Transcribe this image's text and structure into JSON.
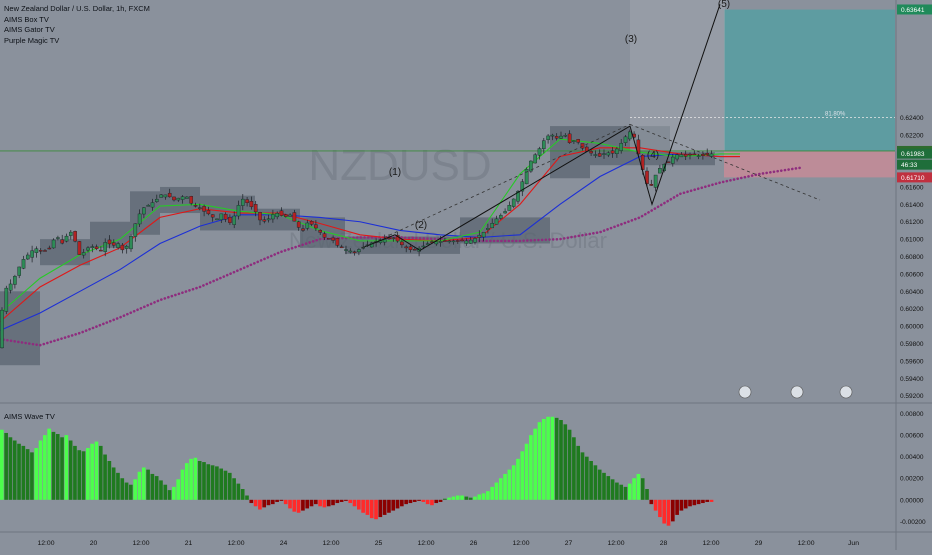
{
  "legend": {
    "title": "New Zealand Dollar / U.S. Dollar, 1h, FXCM",
    "ind1": "AIMS Box TV",
    "ind2": "AIMS Gator TV",
    "ind3": "Purple Magic TV"
  },
  "sub_legend": "AIMS Wave TV",
  "watermark": {
    "symbol": "NZDUSD",
    "name": "New Zealand Dollar / U.S. Dollar"
  },
  "colors": {
    "background": "#8a919c",
    "up": "#2e8b57",
    "down": "#b22222",
    "wave_green_bright": "#4cff4c",
    "wave_green_dark": "#1f7a1f",
    "wave_red_bright": "#ff2a2a",
    "wave_red_dark": "#8b0000",
    "ma_purple": "#8e2d7e",
    "ma_blue": "#1c2fd6",
    "ma_red": "#e01818",
    "ma_green": "#28c828"
  },
  "chart_data": [
    {
      "type": "candlestick",
      "title": "New Zealand Dollar / U.S. Dollar, 1h, FXCM",
      "ylim": [
        0.5915,
        0.6375
      ],
      "y_ticks": [
        "0.63600",
        "0.63400",
        "0.62400",
        "0.62200",
        "0.62000",
        "0.61600",
        "0.61400",
        "0.61200",
        "0.61000",
        "0.60800",
        "0.60600",
        "0.60400",
        "0.60200",
        "0.60000",
        "0.59800",
        "0.59600",
        "0.59400",
        "0.59200"
      ],
      "x_ticks": [
        "12:00",
        "20",
        "12:00",
        "21",
        "12:00",
        "24",
        "12:00",
        "25",
        "12:00",
        "26",
        "12:00",
        "27",
        "12:00",
        "28",
        "12:00",
        "29",
        "12:00",
        "Jun"
      ],
      "price_labels": [
        {
          "text": "0.63641",
          "value": 0.63641,
          "kind": "target"
        },
        {
          "text": "0.62014",
          "value": 0.62014,
          "kind": "line"
        },
        {
          "text": "0.61983",
          "value": 0.61983,
          "kind": "last"
        },
        {
          "text": "46:33",
          "value": 0.6188,
          "kind": "timer"
        },
        {
          "text": "0.61710",
          "value": 0.6171,
          "kind": "stop"
        }
      ],
      "wave_labels": [
        "(1)",
        "(2)",
        "(3)",
        "(4)",
        "(5)"
      ],
      "fib_label": "81.80%",
      "close_path": [
        [
          0,
          0.5975
        ],
        [
          3,
          0.604
        ],
        [
          12,
          0.605
        ],
        [
          22,
          0.6075
        ],
        [
          28,
          0.6082
        ],
        [
          35,
          0.609
        ],
        [
          42,
          0.6085
        ],
        [
          50,
          0.609
        ],
        [
          56,
          0.6105
        ],
        [
          62,
          0.6095
        ],
        [
          70,
          0.611
        ],
        [
          75,
          0.6098
        ],
        [
          80,
          0.608
        ],
        [
          88,
          0.609
        ],
        [
          94,
          0.6092
        ],
        [
          100,
          0.6085
        ],
        [
          106,
          0.6098
        ],
        [
          112,
          0.6092
        ],
        [
          118,
          0.6095
        ],
        [
          124,
          0.6085
        ],
        [
          130,
          0.61
        ],
        [
          136,
          0.612
        ],
        [
          142,
          0.6135
        ],
        [
          150,
          0.614
        ],
        [
          156,
          0.6145
        ],
        [
          162,
          0.6152
        ],
        [
          168,
          0.615
        ],
        [
          174,
          0.6145
        ],
        [
          180,
          0.6148
        ],
        [
          186,
          0.615
        ],
        [
          192,
          0.614
        ],
        [
          198,
          0.6138
        ],
        [
          204,
          0.6132
        ],
        [
          210,
          0.6128
        ],
        [
          216,
          0.6122
        ],
        [
          222,
          0.613
        ],
        [
          228,
          0.6118
        ],
        [
          232,
          0.612
        ],
        [
          238,
          0.6138
        ],
        [
          244,
          0.6148
        ],
        [
          248,
          0.614
        ],
        [
          254,
          0.6135
        ],
        [
          260,
          0.6122
        ],
        [
          266,
          0.612
        ],
        [
          272,
          0.6128
        ],
        [
          278,
          0.613
        ],
        [
          284,
          0.6125
        ],
        [
          290,
          0.6128
        ],
        [
          296,
          0.6118
        ],
        [
          302,
          0.6108
        ],
        [
          308,
          0.612
        ],
        [
          314,
          0.6115
        ],
        [
          320,
          0.6108
        ],
        [
          326,
          0.61
        ],
        [
          332,
          0.61
        ],
        [
          338,
          0.6092
        ],
        [
          346,
          0.6088
        ],
        [
          354,
          0.6085
        ],
        [
          362,
          0.609
        ],
        [
          370,
          0.6095
        ],
        [
          378,
          0.6098
        ],
        [
          386,
          0.61
        ],
        [
          394,
          0.6102
        ],
        [
          400,
          0.6095
        ],
        [
          406,
          0.609
        ],
        [
          412,
          0.6087
        ],
        [
          420,
          0.609
        ],
        [
          428,
          0.6095
        ],
        [
          436,
          0.6097
        ],
        [
          444,
          0.6098
        ],
        [
          452,
          0.6098
        ],
        [
          460,
          0.6098
        ],
        [
          468,
          0.6098
        ],
        [
          474,
          0.61
        ],
        [
          480,
          0.6105
        ],
        [
          486,
          0.611
        ],
        [
          492,
          0.6118
        ],
        [
          498,
          0.6125
        ],
        [
          504,
          0.613
        ],
        [
          510,
          0.614
        ],
        [
          516,
          0.615
        ],
        [
          522,
          0.6165
        ],
        [
          528,
          0.6185
        ],
        [
          534,
          0.6195
        ],
        [
          540,
          0.6205
        ],
        [
          546,
          0.6218
        ],
        [
          552,
          0.622
        ],
        [
          558,
          0.6215
        ],
        [
          564,
          0.6222
        ],
        [
          570,
          0.621
        ],
        [
          576,
          0.6215
        ],
        [
          582,
          0.6205
        ],
        [
          588,
          0.62
        ],
        [
          594,
          0.6198
        ],
        [
          600,
          0.6195
        ],
        [
          606,
          0.62
        ],
        [
          612,
          0.6198
        ],
        [
          618,
          0.6205
        ],
        [
          624,
          0.6215
        ],
        [
          628,
          0.6222
        ],
        [
          632,
          0.6225
        ],
        [
          636,
          0.621
        ],
        [
          640,
          0.619
        ],
        [
          644,
          0.6175
        ],
        [
          648,
          0.616
        ],
        [
          652,
          0.6162
        ],
        [
          656,
          0.6175
        ],
        [
          662,
          0.6185
        ],
        [
          668,
          0.6188
        ],
        [
          674,
          0.6196
        ],
        [
          680,
          0.6198
        ],
        [
          686,
          0.6195
        ],
        [
          692,
          0.6198
        ],
        [
          698,
          0.6196
        ],
        [
          704,
          0.6196
        ],
        [
          710,
          0.6198
        ],
        [
          714,
          0.6198
        ]
      ],
      "ma_purple": [
        [
          0,
          0.5985
        ],
        [
          40,
          0.5978
        ],
        [
          80,
          0.5992
        ],
        [
          120,
          0.601
        ],
        [
          160,
          0.603
        ],
        [
          200,
          0.6045
        ],
        [
          240,
          0.6065
        ],
        [
          280,
          0.6085
        ],
        [
          320,
          0.61
        ],
        [
          360,
          0.6102
        ],
        [
          400,
          0.6102
        ],
        [
          440,
          0.61
        ],
        [
          480,
          0.6098
        ],
        [
          520,
          0.6098
        ],
        [
          560,
          0.61
        ],
        [
          600,
          0.6108
        ],
        [
          640,
          0.6125
        ],
        [
          680,
          0.6152
        ],
        [
          720,
          0.6165
        ],
        [
          760,
          0.6175
        ],
        [
          800,
          0.6182
        ]
      ],
      "ma_blue": [
        [
          0,
          0.5995
        ],
        [
          40,
          0.6015
        ],
        [
          80,
          0.604
        ],
        [
          120,
          0.6065
        ],
        [
          160,
          0.6095
        ],
        [
          200,
          0.6115
        ],
        [
          240,
          0.6128
        ],
        [
          280,
          0.6128
        ],
        [
          320,
          0.6125
        ],
        [
          360,
          0.612
        ],
        [
          400,
          0.611
        ],
        [
          440,
          0.6105
        ],
        [
          480,
          0.6102
        ],
        [
          520,
          0.6105
        ],
        [
          560,
          0.614
        ],
        [
          600,
          0.6172
        ],
        [
          640,
          0.6195
        ],
        [
          680,
          0.6198
        ],
        [
          720,
          0.6195
        ],
        [
          740,
          0.6195
        ]
      ],
      "ma_red": [
        [
          0,
          0.6005
        ],
        [
          40,
          0.6045
        ],
        [
          80,
          0.607
        ],
        [
          120,
          0.609
        ],
        [
          160,
          0.6125
        ],
        [
          200,
          0.6135
        ],
        [
          240,
          0.613
        ],
        [
          280,
          0.613
        ],
        [
          320,
          0.6118
        ],
        [
          360,
          0.6105
        ],
        [
          400,
          0.61
        ],
        [
          440,
          0.6098
        ],
        [
          480,
          0.6102
        ],
        [
          520,
          0.614
        ],
        [
          560,
          0.6195
        ],
        [
          600,
          0.6205
        ],
        [
          640,
          0.6205
        ],
        [
          680,
          0.6198
        ],
        [
          720,
          0.6195
        ],
        [
          740,
          0.6195
        ]
      ],
      "ma_green": [
        [
          0,
          0.6015
        ],
        [
          40,
          0.6055
        ],
        [
          80,
          0.6082
        ],
        [
          120,
          0.61
        ],
        [
          160,
          0.6138
        ],
        [
          200,
          0.614
        ],
        [
          240,
          0.6132
        ],
        [
          280,
          0.6128
        ],
        [
          320,
          0.611
        ],
        [
          360,
          0.6098
        ],
        [
          400,
          0.6098
        ],
        [
          440,
          0.6098
        ],
        [
          480,
          0.6108
        ],
        [
          520,
          0.6175
        ],
        [
          560,
          0.6215
        ],
        [
          600,
          0.621
        ],
        [
          640,
          0.62
        ],
        [
          680,
          0.6195
        ],
        [
          720,
          0.6198
        ],
        [
          740,
          0.6198
        ]
      ]
    },
    {
      "type": "bar",
      "title": "AIMS Wave TV",
      "ylim": [
        -0.0028,
        0.0087
      ],
      "y_ticks": [
        "0.00800",
        "0.00600",
        "0.00400",
        "0.00200",
        "0.00000",
        "-0.00200"
      ],
      "series_x": [
        0,
        714
      ],
      "wave_values": [
        0.0065,
        0.0062,
        0.0058,
        0.0055,
        0.0052,
        0.005,
        0.0047,
        0.0044,
        0.0048,
        0.0055,
        0.006,
        0.0066,
        0.0063,
        0.0061,
        0.0058,
        0.006,
        0.0055,
        0.005,
        0.0046,
        0.0045,
        0.0048,
        0.0052,
        0.0054,
        0.005,
        0.0042,
        0.0036,
        0.003,
        0.0025,
        0.002,
        0.0016,
        0.0014,
        0.0019,
        0.0026,
        0.003,
        0.0028,
        0.0024,
        0.0022,
        0.0018,
        0.0014,
        0.0009,
        0.0012,
        0.0019,
        0.0028,
        0.0034,
        0.0038,
        0.0039,
        0.0036,
        0.0035,
        0.0033,
        0.0032,
        0.0031,
        0.0029,
        0.0027,
        0.0025,
        0.002,
        0.0015,
        0.001,
        0.0004,
        -0.0003,
        -0.0006,
        -0.0009,
        -0.0007,
        -0.0005,
        -0.0004,
        -0.0002,
        -0.0001,
        -0.0004,
        -0.0008,
        -0.0011,
        -0.0012,
        -0.001,
        -0.0008,
        -0.0006,
        -0.0004,
        -0.0006,
        -0.0007,
        -0.0006,
        -0.0005,
        -0.0003,
        -0.0002,
        -0.0001,
        -0.0003,
        -0.0006,
        -0.0009,
        -0.0012,
        -0.0014,
        -0.0017,
        -0.0018,
        -0.0016,
        -0.0014,
        -0.0012,
        -0.001,
        -0.0008,
        -0.0006,
        -0.0004,
        -0.0003,
        -0.0002,
        -0.0001,
        -0.0002,
        -0.0004,
        -0.0005,
        -0.0003,
        -0.0002,
        0.0001,
        0.0002,
        0.0003,
        0.0004,
        0.0004,
        0.0003,
        0.0002,
        0.0003,
        0.0005,
        0.0006,
        0.0008,
        0.0012,
        0.0016,
        0.002,
        0.0024,
        0.0028,
        0.0032,
        0.0038,
        0.0045,
        0.0052,
        0.006,
        0.0066,
        0.0072,
        0.0075,
        0.0077,
        0.0077,
        0.0076,
        0.0074,
        0.007,
        0.0065,
        0.0058,
        0.005,
        0.0044,
        0.004,
        0.0036,
        0.0032,
        0.0028,
        0.0025,
        0.0022,
        0.0019,
        0.0016,
        0.0014,
        0.0012,
        0.0015,
        0.002,
        0.0024,
        0.002,
        0.001,
        -0.0004,
        -0.001,
        -0.0016,
        -0.0022,
        -0.0024,
        -0.002,
        -0.0014,
        -0.001,
        -0.0008,
        -0.0006,
        -0.0005,
        -0.0004,
        -0.0003,
        -0.0002,
        -0.0002
      ]
    }
  ]
}
